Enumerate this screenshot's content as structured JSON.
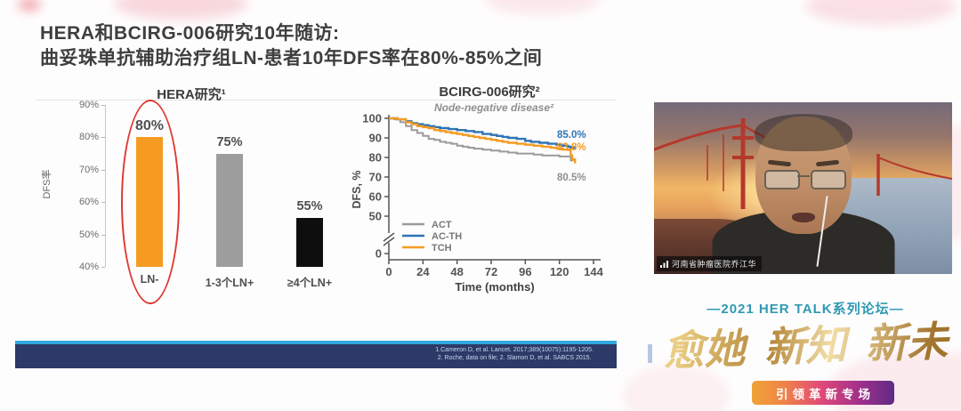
{
  "slide": {
    "title_line1": "HERA和BCIRG-006研究10年随访:",
    "title_line2": "曲妥珠单抗辅助治疗组LN-患者10年DFS率在80%-85%之间",
    "references": [
      "1.Cameron D, et al. Lancet. 2017;389(10075):1195-1205.",
      "2. Roche, data on file; 2. Slamon D, et al. SABCS 2015."
    ]
  },
  "chart_data": [
    {
      "type": "bar",
      "title": "HERA研究¹",
      "ylabel": "DFS率",
      "xlabel": "",
      "ylim": [
        40,
        90
      ],
      "yticks": [
        90,
        80,
        70,
        60,
        50,
        40
      ],
      "ytick_suffix": "%",
      "categories": [
        "LN-",
        "1-3个LN+",
        "≥4个LN+"
      ],
      "values": [
        80,
        75,
        55
      ],
      "value_labels": [
        "80%",
        "75%",
        "55%"
      ],
      "bar_colors": [
        "#F59B22",
        "#9D9D9D",
        "#0e0e0e"
      ],
      "highlight": {
        "shape": "red-ellipse",
        "category": "LN-",
        "color": "#df3a31"
      },
      "grid": false
    },
    {
      "type": "line",
      "title": "BCIRG-006研究²",
      "subtitle": "Node-negative disease²",
      "xlabel": "Time (months)",
      "ylabel": "DFS, %",
      "xlim": [
        0,
        144
      ],
      "xticks": [
        0,
        24,
        48,
        72,
        96,
        120,
        144
      ],
      "yticks": [
        100,
        90,
        80,
        70,
        60,
        50,
        0
      ],
      "axis_break": true,
      "legend_position": "lower left",
      "grid": false,
      "series": [
        {
          "name": "ACT",
          "color": "#9A9A9A",
          "end_label": "80.5%",
          "points": [
            [
              0,
              100
            ],
            [
              4,
              99.5
            ],
            [
              8,
              98
            ],
            [
              12,
              96
            ],
            [
              16,
              94
            ],
            [
              20,
              92.5
            ],
            [
              24,
              91
            ],
            [
              28,
              89.5
            ],
            [
              32,
              89
            ],
            [
              36,
              88
            ],
            [
              40,
              87.5
            ],
            [
              44,
              87
            ],
            [
              48,
              86
            ],
            [
              52,
              85.5
            ],
            [
              56,
              85
            ],
            [
              60,
              84.5
            ],
            [
              66,
              84
            ],
            [
              72,
              83.5
            ],
            [
              78,
              83
            ],
            [
              84,
              82.5
            ],
            [
              90,
              82
            ],
            [
              96,
              82
            ],
            [
              102,
              81.5
            ],
            [
              108,
              81
            ],
            [
              114,
              81
            ],
            [
              120,
              80.5
            ],
            [
              126,
              80.5
            ],
            [
              128,
              78.5
            ],
            [
              130,
              78.5
            ]
          ]
        },
        {
          "name": "AC-TH",
          "color": "#2E74B5",
          "end_label": "85.0%",
          "points": [
            [
              0,
              100
            ],
            [
              6,
              99.5
            ],
            [
              12,
              98.5
            ],
            [
              16,
              97.5
            ],
            [
              20,
              97
            ],
            [
              24,
              96.5
            ],
            [
              28,
              96
            ],
            [
              32,
              95.5
            ],
            [
              36,
              95
            ],
            [
              42,
              94.5
            ],
            [
              48,
              94
            ],
            [
              54,
              93.5
            ],
            [
              60,
              93
            ],
            [
              66,
              92
            ],
            [
              72,
              91.5
            ],
            [
              76,
              91
            ],
            [
              80,
              90.5
            ],
            [
              84,
              90
            ],
            [
              90,
              89.5
            ],
            [
              96,
              88.5
            ],
            [
              100,
              88
            ],
            [
              106,
              87.5
            ],
            [
              112,
              87
            ],
            [
              118,
              86.5
            ],
            [
              122,
              86
            ],
            [
              126,
              85.5
            ],
            [
              128,
              85
            ],
            [
              132,
              85
            ]
          ]
        },
        {
          "name": "TCH",
          "color": "#F59B22",
          "end_label": "83.8%",
          "points": [
            [
              0,
              100
            ],
            [
              6,
              99.5
            ],
            [
              12,
              98
            ],
            [
              16,
              97
            ],
            [
              20,
              96
            ],
            [
              24,
              95.5
            ],
            [
              28,
              95
            ],
            [
              32,
              94
            ],
            [
              36,
              93.5
            ],
            [
              40,
              93
            ],
            [
              44,
              92.5
            ],
            [
              48,
              92
            ],
            [
              52,
              91.5
            ],
            [
              56,
              91
            ],
            [
              60,
              90.5
            ],
            [
              64,
              90
            ],
            [
              68,
              89.5
            ],
            [
              72,
              89
            ],
            [
              76,
              88.5
            ],
            [
              80,
              88
            ],
            [
              84,
              87.5
            ],
            [
              90,
              87
            ],
            [
              96,
              86.5
            ],
            [
              102,
              86
            ],
            [
              108,
              85.5
            ],
            [
              114,
              85
            ],
            [
              118,
              84.5
            ],
            [
              122,
              84
            ],
            [
              126,
              83.8
            ],
            [
              128,
              81
            ],
            [
              129,
              79
            ],
            [
              131,
              77
            ]
          ]
        }
      ]
    }
  ],
  "video": {
    "name_label": "河南省肿瘤医院乔江华"
  },
  "branding": {
    "series_line": "—2021 HER TALK系列论坛—",
    "slogan": "愈她 新知 新未来",
    "banner": "引领革新专场",
    "colors": {
      "series_text": "#2E9AB3",
      "slogan_gold": "#C49A4E",
      "banner_gradient": [
        "#F0A335",
        "#E14A77",
        "#5F2B85"
      ],
      "footer_bar": "#2D3966",
      "footer_stripe": "#2FA9E0"
    }
  }
}
